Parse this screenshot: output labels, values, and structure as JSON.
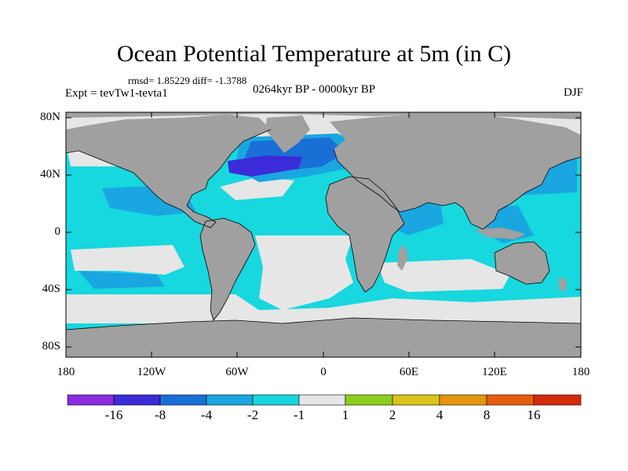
{
  "title": "Ocean Potential Temperature at 5m (in C)",
  "stats": "rmsd= 1.85229  diff= -1.3788",
  "experiment": "Expt = tevTw1-tevta1",
  "period": "0264kyr BP - 0000kyr BP",
  "season": "DJF",
  "lat_labels": [
    "80N",
    "40N",
    "0",
    "40S",
    "80S"
  ],
  "lon_labels": [
    "180",
    "120W",
    "60W",
    "0",
    "60E",
    "120E",
    "180"
  ],
  "colorbar": {
    "labels": [
      "-16",
      "-8",
      "-4",
      "-2",
      "-1",
      "1",
      "2",
      "4",
      "8",
      "16"
    ],
    "colors": [
      "#8b2be2",
      "#3b2bd8",
      "#1a6fd6",
      "#1aa6e0",
      "#17d7df",
      "#e6e6e6",
      "#8ccd1c",
      "#d8c41a",
      "#e6960c",
      "#e85d0c",
      "#d62a0c"
    ]
  },
  "colors": {
    "land": "#a0a0a0",
    "ocean_base": "#17d7df",
    "weak": "#e6e6e6",
    "moderate": "#1aa6e0",
    "strong": "#1a6fd6",
    "very_strong": "#3b2bd8"
  }
}
